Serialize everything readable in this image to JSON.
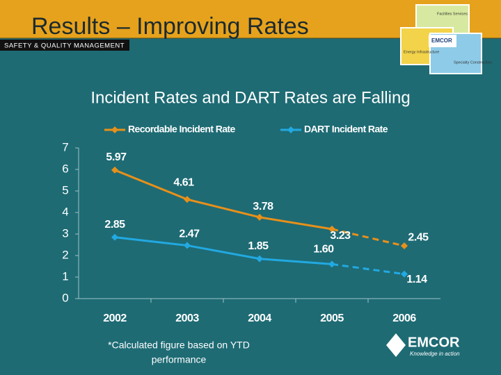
{
  "header": {
    "title": "Results – Improving Rates",
    "section": "SAFETY & QUALITY MANAGEMENT",
    "logo_blocks": [
      "Facilities Services",
      "EMCOR",
      "Energy Infrastructure",
      "Specialty Construction"
    ]
  },
  "subtitle": "Incident Rates and DART Rates are Falling",
  "chart_data": {
    "type": "line",
    "categories": [
      "2002",
      "2003",
      "2004",
      "2005",
      "2006"
    ],
    "series": [
      {
        "name": "Recordable Incident Rate",
        "color": "#e8901a",
        "values": [
          5.97,
          4.61,
          3.78,
          3.23,
          2.45
        ],
        "value_labels": [
          "5.97",
          "4.61",
          "3.78",
          "3.23",
          "2.45"
        ]
      },
      {
        "name": "DART Incident Rate",
        "color": "#22a9e1",
        "values": [
          2.85,
          2.47,
          1.85,
          1.6,
          1.14
        ],
        "value_labels": [
          "2.85",
          "2.47",
          "1.85",
          "1.60",
          "1.14"
        ]
      }
    ],
    "ylim": [
      0,
      7
    ],
    "yticks": [
      0,
      1,
      2,
      3,
      4,
      5,
      6,
      7
    ],
    "dashed_last_segment": true,
    "legend": "top"
  },
  "footnote": [
    "*Calculated figure based on YTD",
    "performance"
  ],
  "footer_logo": {
    "name": "EMCOR",
    "tagline": "Knowledge in action"
  }
}
